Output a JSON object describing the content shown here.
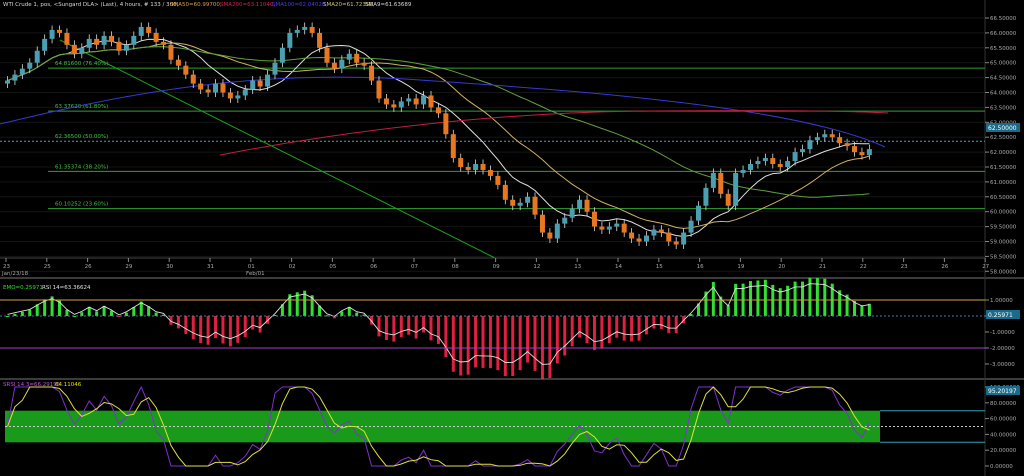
{
  "main_panel": {
    "title_instrument": "WTI Crude 1, pos, <Sungard DLA> (Last), 4 hours, # 133 / 300,",
    "title_sma50": "SMA50=60.99700,",
    "title_sma200": "SMA200=63.11040,",
    "title_sma100": "SMA100=62.04020,",
    "title_sma20": "SMA20=61.72350,",
    "title_sma9": "SMA9=61.63689",
    "price_ticks": [
      "66.50000",
      "66.00000",
      "65.50000",
      "65.00000",
      "64.50000",
      "64.00000",
      "63.50000",
      "63.00000",
      "62.50000",
      "62.00000",
      "61.50000",
      "61.00000",
      "60.50000",
      "60.00000",
      "59.50000",
      "59.00000",
      "58.50000",
      "58.00000"
    ],
    "last_price": "62.50000",
    "fib_levels": [
      {
        "label": "64.81600 (76.40%)",
        "price": 64.816
      },
      {
        "label": "63.37620 (61.80%)",
        "price": 63.3762
      },
      {
        "label": "62.36500 (50.00%)",
        "price": 62.365
      },
      {
        "label": "61.35374 (38.20%)",
        "price": 61.35374
      },
      {
        "label": "60.10252 (23.60%)",
        "price": 60.10252
      }
    ],
    "colors": {
      "up": "#4aa0b0",
      "down": "#e87820",
      "sma9": "#e0e0e0",
      "sma20": "#d0b060",
      "sma50": "#60a040",
      "sma100": "#3838d0",
      "sma200": "#c02040",
      "fib": "#30a030"
    }
  },
  "x_axis": {
    "ticks": [
      "23",
      "25",
      "26",
      "29",
      "30",
      "31",
      "01",
      "02",
      "05",
      "06",
      "07",
      "08",
      "09",
      "12",
      "13",
      "14",
      "15",
      "16",
      "19",
      "20",
      "21",
      "22",
      "23",
      "26",
      "27"
    ],
    "date_left": "Jan/23/18",
    "date_feb": "Feb/01"
  },
  "macd_panel": {
    "title_osc": "EMO=0.25971",
    "title_rsi": "RSI 14=63.36624",
    "ticks": [
      "1.00000",
      "0.00000",
      "-1.00000",
      "-2.00000",
      "-3.00000"
    ],
    "last_value": "0.25971",
    "colors": {
      "pos": "#30e030",
      "neg": "#e02040"
    }
  },
  "stoch_panel": {
    "title": "SRSI 14 3=66.29195",
    "title_b": "64.11046",
    "ticks": [
      "100.00000",
      "80.00000",
      "60.00000",
      "40.00000",
      "20.00000",
      "0.00000"
    ],
    "last_value": "95.20197",
    "band_color": "#1a9a1a"
  }
}
